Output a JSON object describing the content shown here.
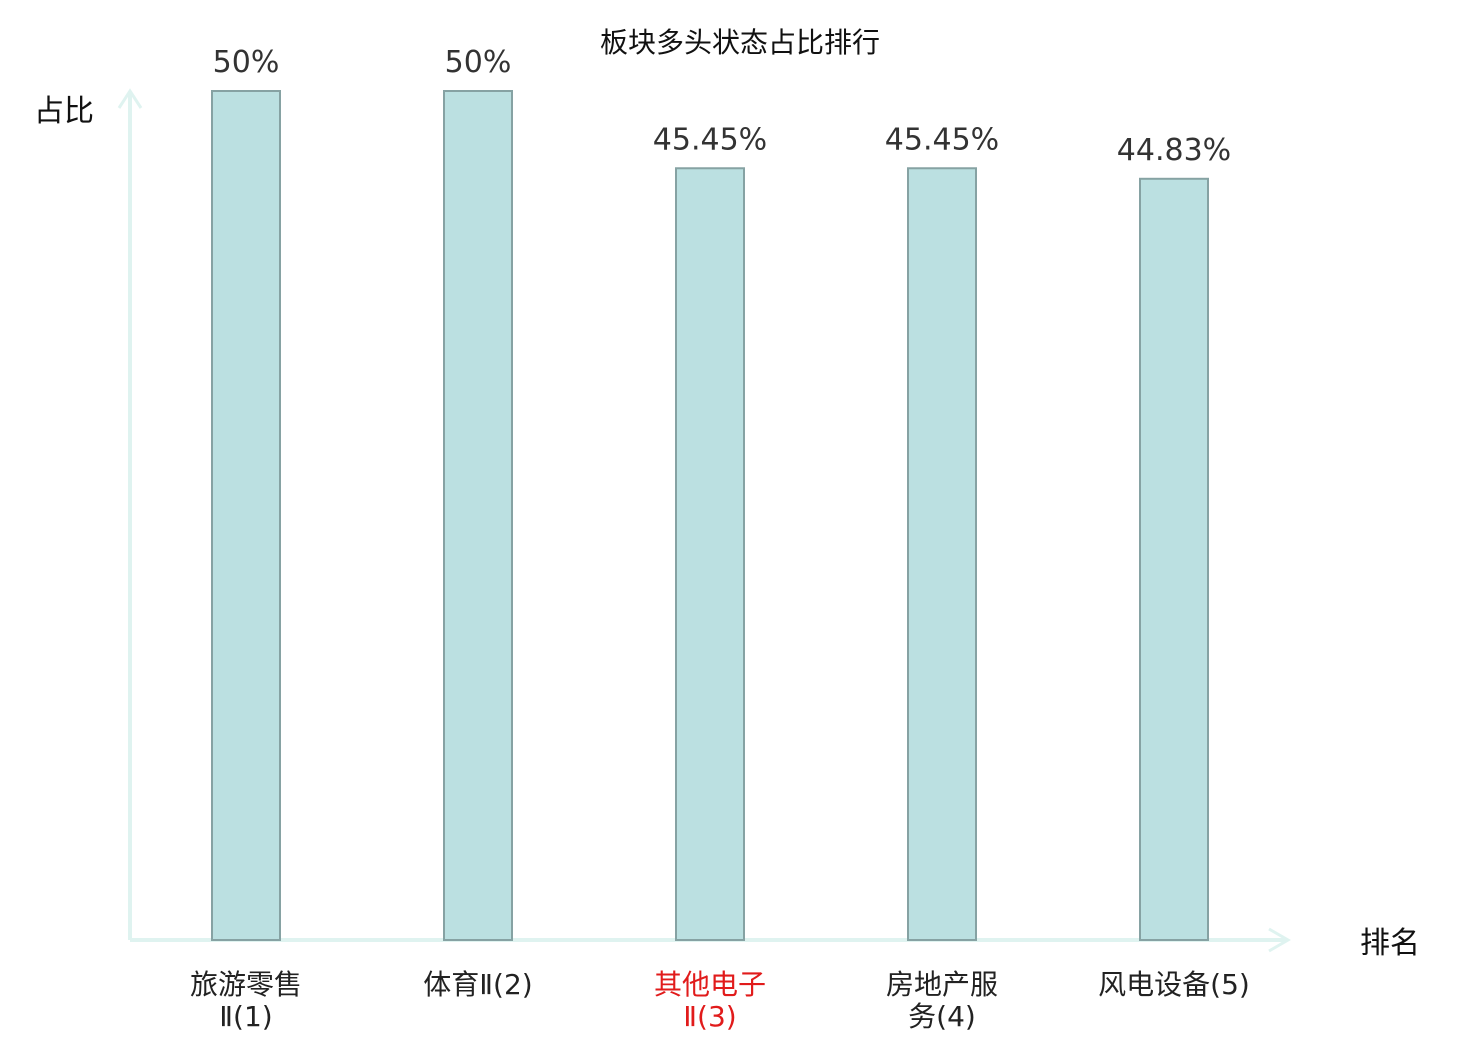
{
  "chart_data": {
    "type": "bar",
    "title": "板块多头状态占比排行",
    "xlabel": "排名",
    "ylabel": "占比",
    "ylim": [
      0,
      55
    ],
    "grid": false,
    "legend": "none",
    "categories": [
      {
        "lines": [
          "旅游零售",
          "Ⅱ(1)"
        ],
        "highlight": false
      },
      {
        "lines": [
          "体育Ⅱ(2)"
        ],
        "highlight": false
      },
      {
        "lines": [
          "其他电子",
          "Ⅱ(3)"
        ],
        "highlight": true
      },
      {
        "lines": [
          "房地产服",
          "务(4)"
        ],
        "highlight": false
      },
      {
        "lines": [
          "风电设备(5)"
        ],
        "highlight": false
      }
    ],
    "values": [
      50,
      50,
      45.45,
      45.45,
      44.83
    ],
    "value_labels": [
      "50%",
      "50%",
      "45.45%",
      "45.45%",
      "44.83%"
    ]
  },
  "colors": {
    "bar_fill": "#bbe0e1",
    "bar_stroke": "#86a2a3",
    "axis": "#dff3f0",
    "highlight_text": "#e11b1b",
    "category_text": "#222222"
  }
}
